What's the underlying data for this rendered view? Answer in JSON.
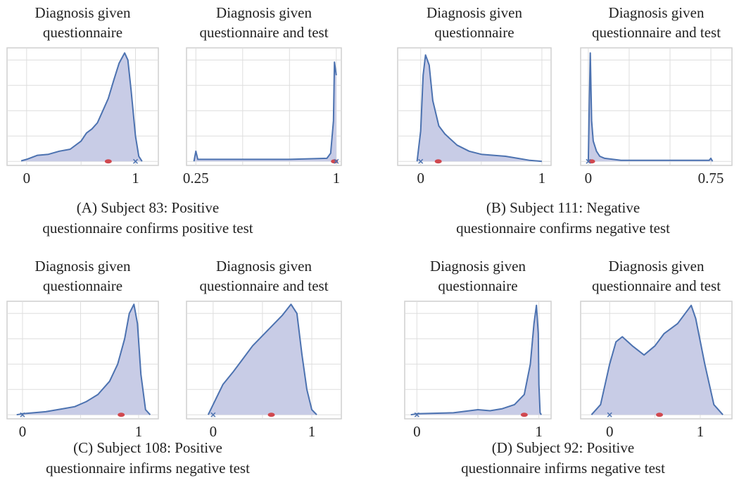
{
  "chart_data": [
    {
      "type": "area",
      "title": [
        "Diagnosis given",
        "questionnaire"
      ],
      "x": [
        -0.05,
        0,
        0.1,
        0.2,
        0.3,
        0.4,
        0.5,
        0.55,
        0.6,
        0.65,
        0.7,
        0.75,
        0.8,
        0.85,
        0.9,
        0.93,
        0.96,
        1.0,
        1.03,
        1.06
      ],
      "values": [
        0.005,
        0.02,
        0.06,
        0.07,
        0.1,
        0.12,
        0.2,
        0.28,
        0.32,
        0.38,
        0.5,
        0.62,
        0.8,
        0.97,
        1.07,
        1.0,
        0.7,
        0.25,
        0.05,
        0
      ],
      "xlim": [
        -0.18,
        1.21
      ],
      "xticks": [
        0,
        1
      ],
      "xgrid": [
        0.5
      ],
      "ylim": [
        -0.04,
        1.12
      ],
      "yticks": [
        0,
        0.25,
        0.5,
        0.75,
        1
      ],
      "color": "#4c72b0",
      "fill": "#c8cce6",
      "markers": [
        {
          "x": 0.75,
          "shape": "ellipse",
          "color": "#d0484f"
        },
        {
          "x": 1.0,
          "shape": "cross",
          "color": "#4c72b0"
        }
      ]
    },
    {
      "type": "area",
      "title": [
        "Diagnosis given",
        "questionnaire and test"
      ],
      "x": [
        0.24,
        0.25,
        0.26,
        0.5,
        0.75,
        0.95,
        0.97,
        0.985,
        0.99,
        1.0
      ],
      "values": [
        0,
        0.1,
        0.02,
        0.02,
        0.02,
        0.03,
        0.08,
        0.4,
        0.98,
        0.85
      ],
      "xlim": [
        0.2,
        1.027
      ],
      "xticks": [
        0.25,
        1
      ],
      "xgrid": [
        0.5,
        0.75
      ],
      "ylim": [
        -0.04,
        1.12
      ],
      "yticks": [
        0,
        0.25,
        0.5,
        0.75,
        1
      ],
      "color": "#4c72b0",
      "fill": "#c8cce6",
      "markers": [
        {
          "x": 0.99,
          "shape": "ellipse",
          "color": "#d0484f"
        },
        {
          "x": 1.0,
          "shape": "cross",
          "color": "#4c72b0"
        }
      ]
    },
    {
      "type": "area",
      "title": [
        "Diagnosis given",
        "questionnaire"
      ],
      "x": [
        -0.03,
        0,
        0.02,
        0.04,
        0.07,
        0.1,
        0.15,
        0.2,
        0.3,
        0.4,
        0.5,
        0.6,
        0.7,
        0.8,
        0.9,
        1.0
      ],
      "values": [
        0,
        0.3,
        0.85,
        1.05,
        0.95,
        0.6,
        0.35,
        0.27,
        0.16,
        0.1,
        0.07,
        0.06,
        0.05,
        0.03,
        0.01,
        0
      ],
      "xlim": [
        -0.19,
        1.076
      ],
      "xticks": [
        0,
        1
      ],
      "xgrid": [
        0.5
      ],
      "ylim": [
        -0.04,
        1.12
      ],
      "yticks": [
        0,
        0.25,
        0.5,
        0.75,
        1
      ],
      "color": "#4c72b0",
      "fill": "#c8cce6",
      "markers": [
        {
          "x": 0.145,
          "shape": "ellipse",
          "color": "#d0484f"
        },
        {
          "x": 0,
          "shape": "cross",
          "color": "#4c72b0"
        }
      ]
    },
    {
      "type": "area",
      "title": [
        "Diagnosis given",
        "questionnaire and test"
      ],
      "x": [
        0,
        0.005,
        0.012,
        0.02,
        0.03,
        0.04,
        0.05,
        0.07,
        0.1,
        0.2,
        0.4,
        0.6,
        0.74,
        0.75,
        0.76
      ],
      "values": [
        0,
        0.5,
        1.07,
        0.4,
        0.2,
        0.15,
        0.1,
        0.05,
        0.03,
        0.01,
        0.01,
        0.01,
        0.01,
        0.03,
        0
      ],
      "xlim": [
        -0.047,
        0.879
      ],
      "xticks": [
        0,
        0.75
      ],
      "xgrid": [
        0.25,
        0.5
      ],
      "ylim": [
        -0.04,
        1.12
      ],
      "yticks": [
        0,
        0.25,
        0.5,
        0.75,
        1
      ],
      "color": "#4c72b0",
      "fill": "#c8cce6",
      "markers": [
        {
          "x": 0.02,
          "shape": "ellipse",
          "color": "#d0484f"
        },
        {
          "x": 0,
          "shape": "cross",
          "color": "#4c72b0"
        }
      ]
    },
    {
      "type": "area",
      "title": [
        "Diagnosis given",
        "questionnaire"
      ],
      "x": [
        -0.05,
        0,
        0.2,
        0.35,
        0.45,
        0.55,
        0.65,
        0.75,
        0.82,
        0.88,
        0.92,
        0.96,
        0.99,
        1.02,
        1.06,
        1.1
      ],
      "values": [
        0,
        0.01,
        0.03,
        0.06,
        0.08,
        0.13,
        0.2,
        0.33,
        0.5,
        0.75,
        1.0,
        1.09,
        0.9,
        0.4,
        0.05,
        0
      ],
      "xlim": [
        -0.133,
        1.17
      ],
      "xticks": [
        0,
        1
      ],
      "xgrid": [
        0.5
      ],
      "ylim": [
        -0.04,
        1.12
      ],
      "yticks": [
        0,
        0.25,
        0.5,
        0.75,
        1
      ],
      "color": "#4c72b0",
      "fill": "#c8cce6",
      "markers": [
        {
          "x": 0.85,
          "shape": "ellipse",
          "color": "#d0484f"
        },
        {
          "x": 0,
          "shape": "cross",
          "color": "#4c72b0"
        }
      ]
    },
    {
      "type": "area",
      "title": [
        "Diagnosis given",
        "questionnaire and test"
      ],
      "x": [
        -0.05,
        0,
        0.1,
        0.2,
        0.3,
        0.4,
        0.5,
        0.6,
        0.7,
        0.79,
        0.85,
        0.9,
        0.95,
        1.0,
        1.05
      ],
      "values": [
        0,
        0.1,
        0.3,
        0.42,
        0.55,
        0.68,
        0.78,
        0.88,
        0.98,
        1.09,
        1.0,
        0.6,
        0.25,
        0.05,
        0
      ],
      "xlim": [
        -0.27,
        1.3
      ],
      "xticks": [
        0,
        1
      ],
      "xgrid": [
        0.5
      ],
      "ylim": [
        -0.04,
        1.12
      ],
      "yticks": [
        0,
        0.25,
        0.5,
        0.75,
        1
      ],
      "color": "#4c72b0",
      "fill": "#c8cce6",
      "markers": [
        {
          "x": 0.59,
          "shape": "ellipse",
          "color": "#d0484f"
        },
        {
          "x": 0,
          "shape": "cross",
          "color": "#4c72b0"
        }
      ]
    },
    {
      "type": "area",
      "title": [
        "Diagnosis given",
        "questionnaire"
      ],
      "x": [
        -0.05,
        0,
        0.3,
        0.5,
        0.6,
        0.7,
        0.8,
        0.88,
        0.93,
        0.96,
        0.98,
        0.995,
        1.0,
        1.01,
        1.02
      ],
      "values": [
        0,
        0.01,
        0.02,
        0.05,
        0.04,
        0.06,
        0.1,
        0.2,
        0.5,
        0.9,
        1.08,
        0.8,
        0.3,
        0.02,
        0
      ],
      "xlim": [
        -0.1,
        1.1
      ],
      "xticks": [
        0,
        1
      ],
      "xgrid": [
        0.5
      ],
      "ylim": [
        -0.04,
        1.12
      ],
      "yticks": [
        0,
        0.25,
        0.5,
        0.75,
        1
      ],
      "color": "#4c72b0",
      "fill": "#c8cce6",
      "markers": [
        {
          "x": 0.88,
          "shape": "ellipse",
          "color": "#d0484f"
        },
        {
          "x": 0,
          "shape": "cross",
          "color": "#4c72b0"
        }
      ]
    },
    {
      "type": "area",
      "title": [
        "Diagnosis given",
        "questionnaire and test"
      ],
      "x": [
        -0.2,
        -0.1,
        0,
        0.07,
        0.14,
        0.25,
        0.38,
        0.5,
        0.6,
        0.75,
        0.9,
        0.95,
        1.05,
        1.15,
        1.25
      ],
      "values": [
        0,
        0.1,
        0.5,
        0.72,
        0.77,
        0.68,
        0.59,
        0.68,
        0.8,
        0.9,
        1.08,
        0.95,
        0.5,
        0.1,
        0
      ],
      "xlim": [
        -0.32,
        1.35
      ],
      "xticks": [
        0,
        1
      ],
      "xgrid": [
        0.5
      ],
      "ylim": [
        -0.04,
        1.12
      ],
      "yticks": [
        0,
        0.25,
        0.5,
        0.75,
        1
      ],
      "color": "#4c72b0",
      "fill": "#c8cce6",
      "markers": [
        {
          "x": 0.55,
          "shape": "ellipse",
          "color": "#d0484f"
        },
        {
          "x": 0,
          "shape": "cross",
          "color": "#4c72b0"
        }
      ]
    }
  ],
  "captions": [
    [
      "(A) Subject 83: Positive",
      "questionnaire confirms positive test"
    ],
    [
      "(B) Subject 111: Negative",
      "questionnaire confirms negative test"
    ],
    [
      "(C) Subject 108: Positive",
      "questionnaire infirms negative test"
    ],
    [
      "(D) Subject 92: Positive",
      "questionnaire infirms negative test"
    ]
  ]
}
